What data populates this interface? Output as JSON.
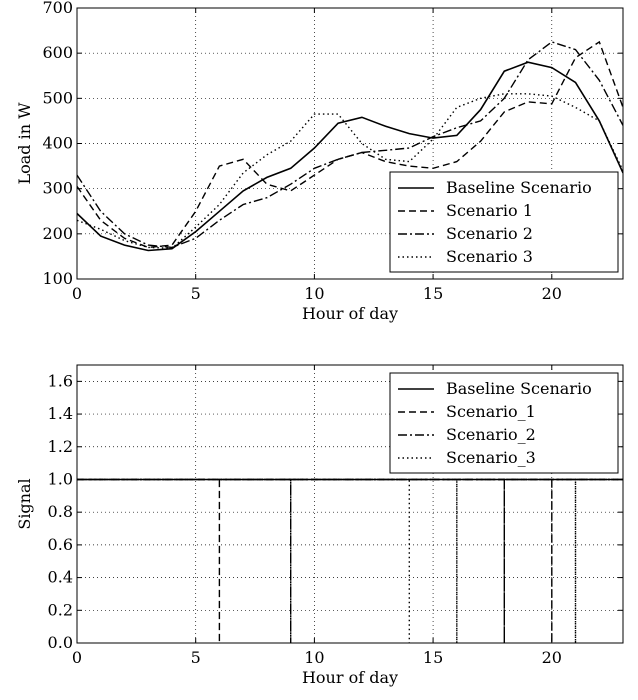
{
  "chart_data": [
    {
      "type": "line",
      "xlabel": "Hour of day",
      "ylabel": "Load in W",
      "xlim": [
        0,
        23
      ],
      "ylim": [
        100,
        700
      ],
      "xticks": [
        "0",
        "5",
        "10",
        "15",
        "20"
      ],
      "yticks": [
        "100",
        "200",
        "300",
        "400",
        "500",
        "600",
        "700"
      ],
      "grid": true,
      "legend_position": "lower-right",
      "x": [
        0,
        1,
        2,
        3,
        4,
        5,
        6,
        7,
        8,
        9,
        10,
        11,
        12,
        13,
        14,
        15,
        16,
        17,
        18,
        19,
        20,
        21,
        22,
        23
      ],
      "series": [
        {
          "name": "Baseline Scenario",
          "style": "solid",
          "values": [
            245,
            195,
            175,
            163,
            167,
            205,
            250,
            295,
            325,
            345,
            390,
            445,
            458,
            438,
            422,
            412,
            418,
            475,
            560,
            580,
            568,
            535,
            450,
            335
          ]
        },
        {
          "name": "Scenario 1",
          "style": "dashed",
          "values": [
            305,
            230,
            190,
            170,
            175,
            250,
            350,
            365,
            310,
            295,
            330,
            365,
            380,
            360,
            350,
            345,
            360,
            405,
            470,
            492,
            488,
            590,
            625,
            480
          ]
        },
        {
          "name": "Scenario 2",
          "style": "dashdot",
          "values": [
            330,
            250,
            200,
            175,
            170,
            190,
            230,
            265,
            280,
            310,
            345,
            365,
            380,
            385,
            390,
            415,
            435,
            450,
            500,
            585,
            625,
            608,
            540,
            440
          ]
        },
        {
          "name": "Scenario 3",
          "style": "dotted",
          "values": [
            230,
            210,
            185,
            170,
            168,
            215,
            265,
            335,
            375,
            405,
            465,
            465,
            400,
            365,
            360,
            410,
            480,
            500,
            510,
            510,
            505,
            480,
            450,
            340
          ]
        }
      ]
    },
    {
      "type": "line",
      "xlabel": "Hour of day",
      "ylabel": "Signal",
      "xlim": [
        0,
        23
      ],
      "ylim": [
        0.0,
        1.7
      ],
      "xticks": [
        "0",
        "5",
        "10",
        "15",
        "20"
      ],
      "yticks": [
        "0.0",
        "0.2",
        "0.4",
        "0.6",
        "0.8",
        "1.0",
        "1.2",
        "1.4",
        "1.6"
      ],
      "grid": true,
      "legend_position": "upper-right",
      "series": [
        {
          "name": "Baseline Scenario",
          "style": "solid",
          "zero_hours": []
        },
        {
          "name": "Scenario_1",
          "style": "dashed",
          "zero_hours": [
            6,
            20
          ]
        },
        {
          "name": "Scenario_2",
          "style": "dashdot",
          "zero_hours": [
            9,
            18
          ]
        },
        {
          "name": "Scenario_3",
          "style": "dotted",
          "zero_hours": [
            14,
            16,
            21
          ]
        }
      ]
    }
  ]
}
